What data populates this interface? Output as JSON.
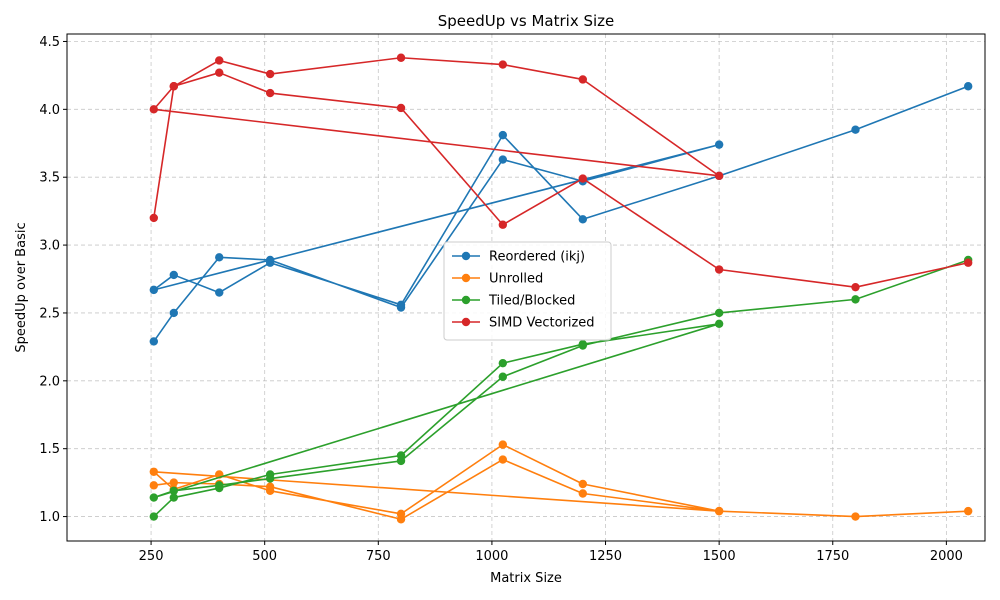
{
  "chart_data": {
    "type": "line",
    "title": "SpeedUp vs Matrix Size",
    "xlabel": "Matrix Size",
    "ylabel": "SpeedUp over Basic",
    "xlim": [
      65,
      2085
    ],
    "ylim": [
      0.82,
      4.555
    ],
    "xticks": [
      250,
      500,
      750,
      1000,
      1250,
      1500,
      1750,
      2000
    ],
    "yticks": [
      1.0,
      1.5,
      2.0,
      2.5,
      3.0,
      3.5,
      4.0,
      4.5
    ],
    "grid": true,
    "legend_position": "center",
    "x": [
      256,
      300,
      400,
      512,
      800,
      1024,
      1200,
      1500,
      256,
      300,
      400,
      512,
      800,
      1024,
      1200,
      1500,
      1800,
      2048
    ],
    "series": [
      {
        "name": "Reordered (ikj)",
        "color": "#1f77b4",
        "values": [
          2.29,
          2.5,
          2.91,
          2.89,
          2.54,
          3.63,
          3.47,
          3.74,
          2.67,
          2.78,
          2.65,
          2.87,
          2.56,
          3.81,
          3.19,
          3.51,
          3.85,
          4.17
        ]
      },
      {
        "name": "Unrolled",
        "color": "#ff7f0e",
        "values": [
          1.23,
          1.25,
          1.24,
          1.22,
          0.98,
          1.42,
          1.17,
          1.04,
          1.33,
          1.2,
          1.31,
          1.19,
          1.02,
          1.53,
          1.24,
          1.04,
          1.0,
          1.04
        ]
      },
      {
        "name": "Tiled/Blocked",
        "color": "#2ca02c",
        "values": [
          1.0,
          1.14,
          1.21,
          1.31,
          1.45,
          2.13,
          2.27,
          2.42,
          1.14,
          1.19,
          1.23,
          1.28,
          1.41,
          2.03,
          2.26,
          2.5,
          2.6,
          2.89
        ]
      },
      {
        "name": "SIMD Vectorized",
        "color": "#d62728",
        "values": [
          3.2,
          4.17,
          4.36,
          4.26,
          4.38,
          4.33,
          4.22,
          3.51,
          4.0,
          4.17,
          4.27,
          4.12,
          4.01,
          3.15,
          3.49,
          2.82,
          2.69,
          2.87
        ]
      }
    ]
  }
}
